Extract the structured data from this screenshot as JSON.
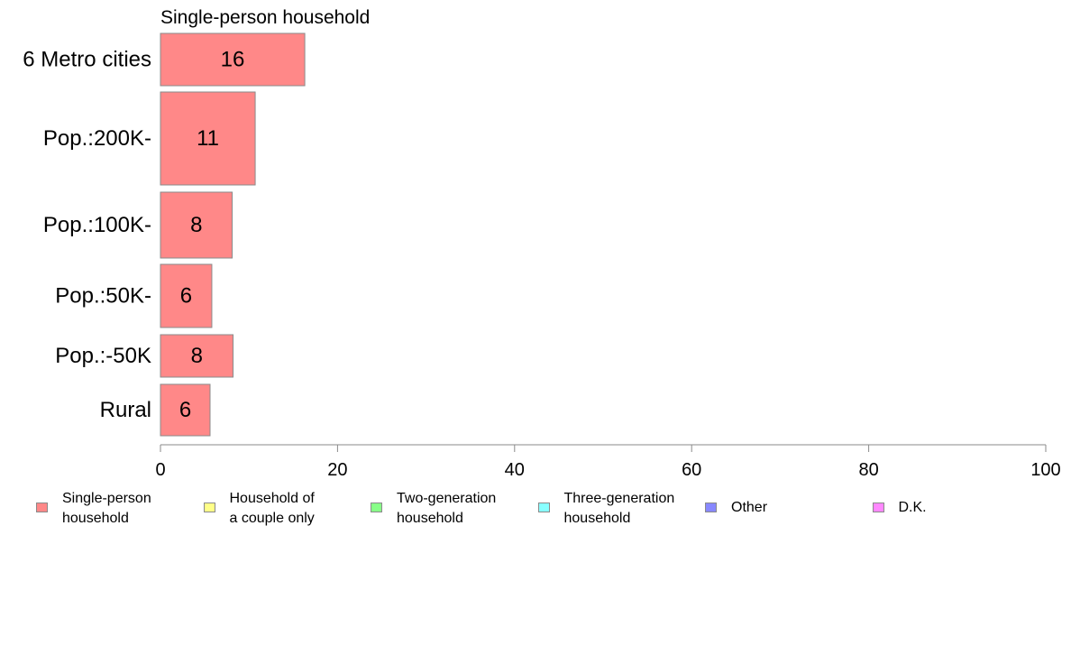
{
  "chart_data": {
    "type": "bar",
    "orientation": "horizontal",
    "title": "Single-person household",
    "categories": [
      "6 Metro cities",
      "Pop.:200K-",
      "Pop.:100K-",
      "Pop.:50K-",
      "Pop.:-50K",
      "Rural"
    ],
    "series": [
      {
        "name": "Single-person household",
        "values": [
          16.3,
          10.7,
          8.1,
          5.8,
          8.2,
          5.6
        ],
        "data_labels": [
          "16",
          "11",
          "8",
          "6",
          "8",
          "6"
        ]
      }
    ],
    "xlim": [
      0,
      100
    ],
    "x_ticks": [
      "0",
      "20",
      "40",
      "60",
      "80",
      "100"
    ],
    "grid": false,
    "bar_color": "#ff8888",
    "bar_edge_color": "#8a8a8a",
    "legend_placement": "bottom"
  },
  "legend": [
    {
      "label": "Single-person\nhousehold",
      "color": "#ff8888"
    },
    {
      "label": "Household of\na couple only",
      "color": "#ffff88"
    },
    {
      "label": "Two-generation\nhousehold",
      "color": "#88ff88"
    },
    {
      "label": "Three-generation\nhousehold",
      "color": "#88ffff"
    },
    {
      "label": "Other",
      "color": "#8888ff"
    },
    {
      "label": "D.K.",
      "color": "#ff88ff"
    }
  ]
}
